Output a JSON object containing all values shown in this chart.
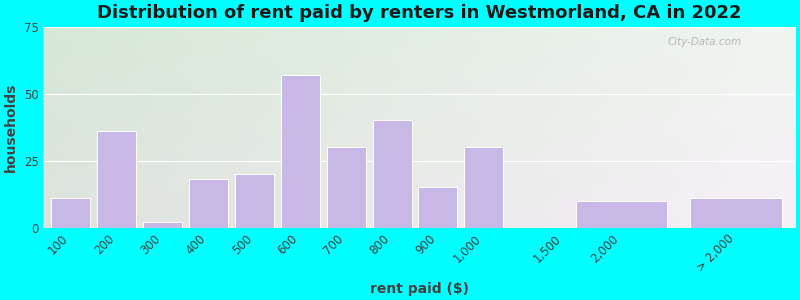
{
  "title": "Distribution of rent paid by renters in Westmorland, CA in 2022",
  "xlabel": "rent paid ($)",
  "ylabel": "households",
  "bar_color": "#c8b8e6",
  "bar_edgecolor": "#ffffff",
  "bg_color_topleft": "#d8ead8",
  "bg_color_topright": "#e8e8e0",
  "bg_color_bottom": "#f0f0e8",
  "outer_bg": "#00ffff",
  "ylim": [
    0,
    75
  ],
  "yticks": [
    0,
    25,
    50,
    75
  ],
  "tick_labels": [
    "100",
    "200",
    "300",
    "400",
    "500",
    "600",
    "700",
    "800",
    "900",
    "1,000",
    "1,500",
    "2,000",
    "> 2,000"
  ],
  "values_by_label": {
    "100": 11,
    "200": 36,
    "300": 2,
    "400": 18,
    "500": 20,
    "600": 57,
    "700": 30,
    "800": 40,
    "900": 15,
    "1,000": 30,
    "1,500": 0,
    "2,000": 10,
    "> 2,000": 11
  },
  "watermark": "City-Data.com",
  "title_fontsize": 13,
  "axis_label_fontsize": 10,
  "tick_fontsize": 8.5
}
